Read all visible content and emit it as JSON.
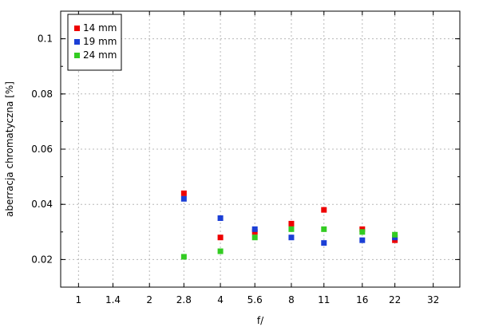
{
  "chart_data": {
    "type": "scatter",
    "title": "",
    "xlabel": "f/",
    "ylabel": "aberracja chromatyczna [%]",
    "x_scale": "log2",
    "x_categories": [
      "1",
      "1.4",
      "2",
      "2.8",
      "4",
      "5.6",
      "8",
      "11",
      "16",
      "22",
      "32"
    ],
    "xlim": [
      0.84,
      41.5
    ],
    "ylim": [
      0.01,
      0.11
    ],
    "y_ticks": [
      0.02,
      0.04,
      0.06,
      0.08,
      0.1
    ],
    "y_tick_labels": [
      "0.02",
      "0.04",
      "0.06",
      "0.08",
      "0.1"
    ],
    "grid": true,
    "legend_position": "top-left",
    "series": [
      {
        "name": "14 mm",
        "color": "#ee0000",
        "points": [
          {
            "x": 2.8,
            "y": 0.044
          },
          {
            "x": 4,
            "y": 0.028
          },
          {
            "x": 5.6,
            "y": 0.03
          },
          {
            "x": 8,
            "y": 0.033
          },
          {
            "x": 11,
            "y": 0.038
          },
          {
            "x": 16,
            "y": 0.031
          },
          {
            "x": 22,
            "y": 0.027
          }
        ]
      },
      {
        "name": "19 mm",
        "color": "#1b3fd6",
        "points": [
          {
            "x": 2.8,
            "y": 0.042
          },
          {
            "x": 4,
            "y": 0.035
          },
          {
            "x": 5.6,
            "y": 0.031
          },
          {
            "x": 8,
            "y": 0.028
          },
          {
            "x": 11,
            "y": 0.026
          },
          {
            "x": 16,
            "y": 0.027
          },
          {
            "x": 22,
            "y": 0.028
          }
        ]
      },
      {
        "name": "24 mm",
        "color": "#33cc22",
        "points": [
          {
            "x": 2.8,
            "y": 0.021
          },
          {
            "x": 4,
            "y": 0.023
          },
          {
            "x": 5.6,
            "y": 0.028
          },
          {
            "x": 8,
            "y": 0.031
          },
          {
            "x": 11,
            "y": 0.031
          },
          {
            "x": 16,
            "y": 0.03
          },
          {
            "x": 22,
            "y": 0.029
          }
        ]
      }
    ]
  }
}
